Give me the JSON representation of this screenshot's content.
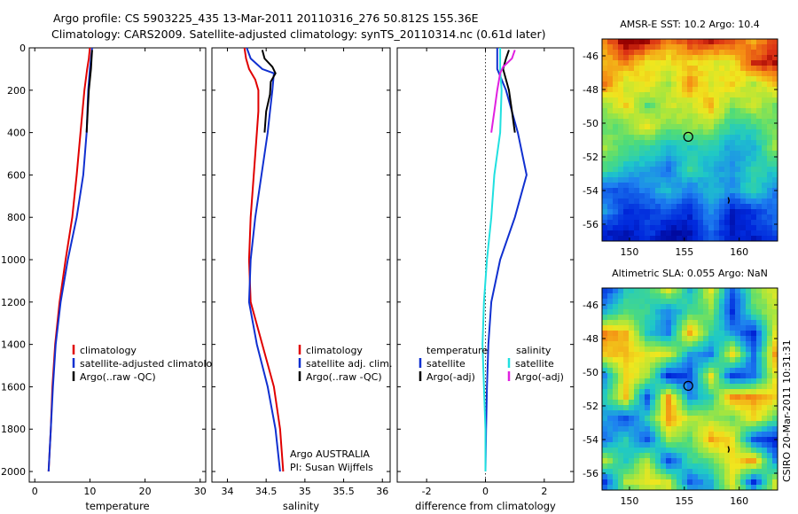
{
  "header": {
    "line1": "Argo profile: CS 5903225_435 13-Mar-2011 20110316_276 50.812S 155.36E",
    "line2": "Climatology: CARS2009. Satellite-adjusted climatology: synTS_20110314.nc (0.61d later)"
  },
  "colors": {
    "climatology": "#e00000",
    "satellite": "#1030d0",
    "argo": "#000000",
    "cyan": "#20e0e0",
    "magenta": "#e020e0"
  },
  "chart_data": [
    {
      "type": "line",
      "xlabel": "temperature",
      "ylim": [
        0,
        2050
      ],
      "xlim": [
        -1,
        31
      ],
      "xticks": [
        0,
        10,
        20,
        30
      ],
      "yticks": [
        0,
        200,
        400,
        600,
        800,
        1000,
        1200,
        1400,
        1600,
        1800,
        2000
      ],
      "legend": [
        "climatology",
        "satellite-adjusted climatology",
        "Argo(..raw -QC)"
      ],
      "series": [
        {
          "name": "climatology",
          "color": "climatology",
          "points": [
            [
              10.0,
              0
            ],
            [
              9.8,
              50
            ],
            [
              9.5,
              100
            ],
            [
              9.0,
              200
            ],
            [
              8.3,
              400
            ],
            [
              7.6,
              600
            ],
            [
              6.8,
              800
            ],
            [
              5.6,
              1000
            ],
            [
              4.5,
              1200
            ],
            [
              3.7,
              1400
            ],
            [
              3.2,
              1600
            ],
            [
              2.9,
              1800
            ],
            [
              2.5,
              2000
            ]
          ]
        },
        {
          "name": "satellite-adjusted climatology",
          "color": "satellite",
          "points": [
            [
              10.4,
              0
            ],
            [
              10.2,
              50
            ],
            [
              10.0,
              100
            ],
            [
              9.7,
              200
            ],
            [
              9.4,
              400
            ],
            [
              8.8,
              600
            ],
            [
              7.6,
              800
            ],
            [
              6.0,
              1000
            ],
            [
              4.7,
              1200
            ],
            [
              3.8,
              1400
            ],
            [
              3.3,
              1600
            ],
            [
              2.9,
              1800
            ],
            [
              2.5,
              2000
            ]
          ]
        },
        {
          "name": "Argo(..raw -QC)",
          "color": "argo",
          "points": [
            [
              10.4,
              10
            ],
            [
              10.3,
              50
            ],
            [
              10.2,
              100
            ],
            [
              10.0,
              150
            ],
            [
              9.8,
              200
            ],
            [
              9.6,
              300
            ],
            [
              9.4,
              400
            ]
          ]
        }
      ]
    },
    {
      "type": "line",
      "xlabel": "salinity",
      "ylim": [
        0,
        2050
      ],
      "xlim": [
        33.8,
        36.1
      ],
      "xticks": [
        34,
        34.5,
        35,
        35.5,
        36
      ],
      "yticks": [
        0,
        200,
        400,
        600,
        800,
        1000,
        1200,
        1400,
        1600,
        1800,
        2000
      ],
      "legend": [
        "climatology",
        "satellite adj. clim.",
        "Argo(..raw -QC)"
      ],
      "annotations": [
        "Argo AUSTRALIA",
        "PI: Susan Wijffels"
      ],
      "series": [
        {
          "name": "climatology",
          "color": "climatology",
          "points": [
            [
              34.22,
              0
            ],
            [
              34.24,
              50
            ],
            [
              34.28,
              100
            ],
            [
              34.36,
              150
            ],
            [
              34.4,
              200
            ],
            [
              34.4,
              300
            ],
            [
              34.38,
              400
            ],
            [
              34.34,
              600
            ],
            [
              34.3,
              800
            ],
            [
              34.28,
              1000
            ],
            [
              34.3,
              1200
            ],
            [
              34.45,
              1400
            ],
            [
              34.6,
              1600
            ],
            [
              34.68,
              1800
            ],
            [
              34.72,
              2000
            ]
          ]
        },
        {
          "name": "satellite adj. clim.",
          "color": "satellite",
          "points": [
            [
              34.25,
              0
            ],
            [
              34.3,
              50
            ],
            [
              34.45,
              100
            ],
            [
              34.6,
              120
            ],
            [
              34.58,
              200
            ],
            [
              34.55,
              300
            ],
            [
              34.52,
              400
            ],
            [
              34.44,
              600
            ],
            [
              34.36,
              800
            ],
            [
              34.3,
              1000
            ],
            [
              34.28,
              1200
            ],
            [
              34.38,
              1400
            ],
            [
              34.52,
              1600
            ],
            [
              34.62,
              1800
            ],
            [
              34.68,
              2000
            ]
          ]
        },
        {
          "name": "Argo(..raw -QC)",
          "color": "argo",
          "points": [
            [
              34.45,
              10
            ],
            [
              34.48,
              50
            ],
            [
              34.58,
              90
            ],
            [
              34.62,
              120
            ],
            [
              34.56,
              160
            ],
            [
              34.55,
              220
            ],
            [
              34.5,
              300
            ],
            [
              34.48,
              400
            ]
          ]
        }
      ]
    },
    {
      "type": "line",
      "xlabel": "difference from climatology",
      "ylim": [
        0,
        2050
      ],
      "xlim": [
        -3,
        3
      ],
      "xticks": [
        -2,
        0,
        2
      ],
      "yticks": [
        0,
        200,
        400,
        600,
        800,
        1000,
        1200,
        1400,
        1600,
        1800,
        2000
      ],
      "legend_titles": [
        "temperature",
        "salinity"
      ],
      "legend": [
        "satellite",
        "Argo(-adj)",
        "satellite",
        "Argo(-adj)"
      ],
      "series": [
        {
          "name": "temperature satellite",
          "color": "satellite",
          "points": [
            [
              0.4,
              0
            ],
            [
              0.4,
              100
            ],
            [
              0.7,
              200
            ],
            [
              1.1,
              400
            ],
            [
              1.4,
              600
            ],
            [
              1.0,
              800
            ],
            [
              0.5,
              1000
            ],
            [
              0.2,
              1200
            ],
            [
              0.1,
              1400
            ],
            [
              0.05,
              1600
            ],
            [
              0.02,
              1800
            ],
            [
              0.0,
              2000
            ]
          ]
        },
        {
          "name": "temperature Argo(-adj)",
          "color": "argo",
          "points": [
            [
              0.8,
              10
            ],
            [
              0.7,
              50
            ],
            [
              0.6,
              100
            ],
            [
              0.7,
              150
            ],
            [
              0.8,
              200
            ],
            [
              0.9,
              300
            ],
            [
              1.0,
              400
            ]
          ]
        },
        {
          "name": "salinity satellite",
          "color": "cyan",
          "points": [
            [
              0.5,
              0
            ],
            [
              0.5,
              100
            ],
            [
              0.55,
              200
            ],
            [
              0.5,
              400
            ],
            [
              0.3,
              600
            ],
            [
              0.2,
              800
            ],
            [
              0.05,
              1000
            ],
            [
              -0.05,
              1200
            ],
            [
              -0.1,
              1400
            ],
            [
              -0.05,
              1600
            ],
            [
              0.0,
              1800
            ],
            [
              0.0,
              2000
            ]
          ]
        },
        {
          "name": "salinity Argo(-adj)",
          "color": "magenta",
          "points": [
            [
              1.0,
              10
            ],
            [
              0.9,
              50
            ],
            [
              0.6,
              90
            ],
            [
              0.5,
              120
            ],
            [
              0.4,
              200
            ],
            [
              0.3,
              300
            ],
            [
              0.2,
              400
            ]
          ]
        }
      ]
    },
    {
      "type": "heatmap",
      "title": "AMSR-E SST: 10.2 Argo: 10.4",
      "xlim": [
        147.5,
        163.5
      ],
      "ylim": [
        -57,
        -45
      ],
      "xticks": [
        150,
        155,
        160
      ],
      "yticks": [
        -46,
        -48,
        -50,
        -52,
        -54,
        -56
      ],
      "float_position": [
        155.36,
        -50.81
      ]
    },
    {
      "type": "heatmap",
      "title": "Altimetric SLA: 0.055 Argo: NaN",
      "xlim": [
        147.5,
        163.5
      ],
      "ylim": [
        -57,
        -45
      ],
      "xticks": [
        150,
        155,
        160
      ],
      "yticks": [
        -46,
        -48,
        -50,
        -52,
        -54,
        -56
      ],
      "float_position": [
        155.36,
        -50.81
      ]
    }
  ],
  "side_label": "CSIRO 20-Mar-2011 10:31:31"
}
